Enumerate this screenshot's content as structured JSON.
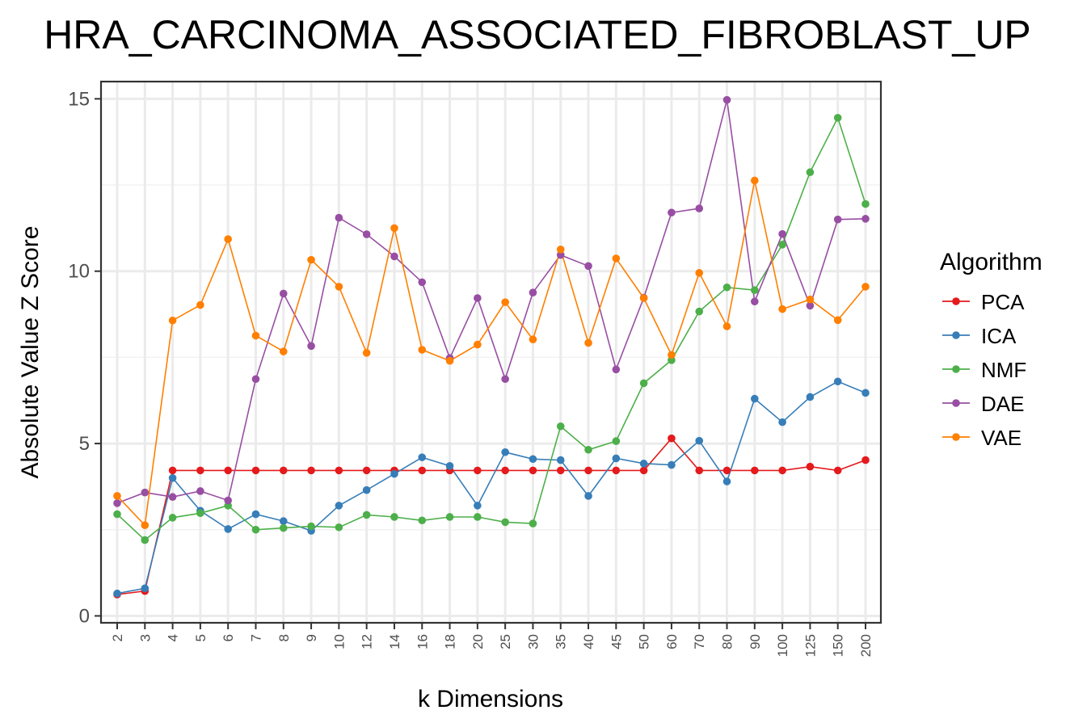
{
  "chart_data": {
    "type": "line",
    "title": "HRA_CARCINOMA_ASSOCIATED_FIBROBLAST_UP",
    "xlabel": "k Dimensions",
    "ylabel": "Absolute Value Z Score",
    "categories": [
      "2",
      "3",
      "4",
      "5",
      "6",
      "7",
      "8",
      "9",
      "10",
      "12",
      "14",
      "16",
      "18",
      "20",
      "25",
      "30",
      "35",
      "40",
      "45",
      "50",
      "60",
      "70",
      "80",
      "90",
      "100",
      "125",
      "150",
      "200"
    ],
    "ylim": [
      0,
      15.5
    ],
    "yticks": [
      0,
      5,
      10,
      15
    ],
    "grid": true,
    "legend": {
      "title": "Algorithm",
      "placement": "right"
    },
    "series": [
      {
        "name": "PCA",
        "color": "#e41a1c",
        "values": [
          0.62,
          0.72,
          4.22,
          4.22,
          4.22,
          4.22,
          4.22,
          4.22,
          4.22,
          4.22,
          4.22,
          4.22,
          4.22,
          4.22,
          4.22,
          4.22,
          4.22,
          4.22,
          4.22,
          4.22,
          5.15,
          4.22,
          4.22,
          4.22,
          4.22,
          4.33,
          4.22,
          4.52
        ]
      },
      {
        "name": "ICA",
        "color": "#377eb8",
        "values": [
          0.65,
          0.8,
          4.0,
          3.05,
          2.52,
          2.95,
          2.75,
          2.47,
          3.2,
          3.65,
          4.12,
          4.6,
          4.35,
          3.2,
          4.75,
          4.55,
          4.52,
          3.48,
          4.57,
          4.42,
          4.38,
          5.08,
          3.9,
          6.3,
          5.62,
          6.35,
          6.8,
          6.47
        ]
      },
      {
        "name": "NMF",
        "color": "#4daf4a",
        "values": [
          2.95,
          2.2,
          2.85,
          2.98,
          3.2,
          2.5,
          2.55,
          2.6,
          2.57,
          2.93,
          2.87,
          2.77,
          2.87,
          2.87,
          2.72,
          2.68,
          5.5,
          4.82,
          5.07,
          6.75,
          7.42,
          8.83,
          9.53,
          9.45,
          10.77,
          12.87,
          14.45,
          11.95
        ]
      },
      {
        "name": "DAE",
        "color": "#984ea3",
        "values": [
          3.27,
          3.58,
          3.45,
          3.62,
          3.35,
          6.87,
          9.35,
          7.83,
          11.55,
          11.07,
          10.43,
          9.68,
          7.48,
          9.22,
          6.87,
          9.38,
          10.47,
          10.15,
          7.15,
          9.23,
          11.7,
          11.82,
          14.97,
          9.12,
          11.08,
          9.0,
          11.5,
          11.52
        ]
      },
      {
        "name": "VAE",
        "color": "#ff7f00",
        "values": [
          3.48,
          2.63,
          8.57,
          9.02,
          10.93,
          8.13,
          7.67,
          10.33,
          9.55,
          7.63,
          11.25,
          7.72,
          7.4,
          7.87,
          9.1,
          8.02,
          10.63,
          7.92,
          10.37,
          9.22,
          7.57,
          9.95,
          8.4,
          12.63,
          8.9,
          9.18,
          8.58,
          9.55
        ]
      }
    ]
  }
}
